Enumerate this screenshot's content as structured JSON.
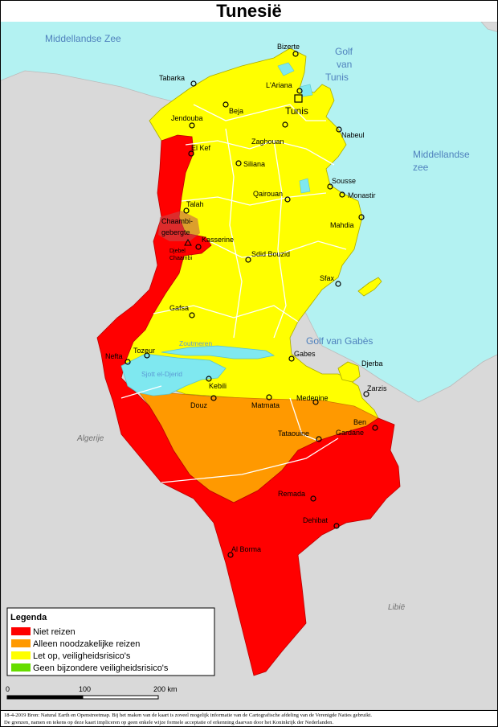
{
  "title": "Tunesië",
  "water_labels": {
    "mediterranean_nw": "Middellandse Zee",
    "gulf_tunis_line1": "Golf",
    "gulf_tunis_line2": "van",
    "gulf_tunis_line3": "Tunis",
    "mediterranean_e_line1": "Middellandse",
    "mediterranean_e_line2": "zee",
    "gulf_gabes": "Golf van Gabès",
    "zoutmeren": "Zoutmeren",
    "sjott": "Sjott el-Djerid"
  },
  "countries": {
    "algeria": "Algerije",
    "libya": "Libië"
  },
  "mountain_area": {
    "line1": "Chaambi-",
    "line2": "gebergte",
    "peak_line1": "Djebel",
    "peak_line2": "Chaambi"
  },
  "cities": [
    {
      "name": "Bizerte"
    },
    {
      "name": "Tabarka"
    },
    {
      "name": "L'Ariana"
    },
    {
      "name": "Beja"
    },
    {
      "name": "Tunis"
    },
    {
      "name": "Jendouba"
    },
    {
      "name": "Nabeul"
    },
    {
      "name": "Zaghouan"
    },
    {
      "name": "El Kef"
    },
    {
      "name": "Siliana"
    },
    {
      "name": "Sousse"
    },
    {
      "name": "Monastir"
    },
    {
      "name": "Qairouan"
    },
    {
      "name": "Talah"
    },
    {
      "name": "Mahdia"
    },
    {
      "name": "Kasserine"
    },
    {
      "name": "Sdid Bouzid"
    },
    {
      "name": "Sfax"
    },
    {
      "name": "Gafsa"
    },
    {
      "name": "Gabes"
    },
    {
      "name": "Nefta"
    },
    {
      "name": "Tozeur"
    },
    {
      "name": "Djerba"
    },
    {
      "name": "Kebili"
    },
    {
      "name": "Zarzis"
    },
    {
      "name": "Douz"
    },
    {
      "name": "Matmata"
    },
    {
      "name": "Medenine"
    },
    {
      "name": "Ben"
    },
    {
      "name": "Gardane"
    },
    {
      "name": "Tataouine"
    },
    {
      "name": "Remada"
    },
    {
      "name": "Dehibat"
    },
    {
      "name": "Al Borma"
    }
  ],
  "legend": {
    "title": "Legenda",
    "items": [
      {
        "label": "Niet reizen",
        "color": "#ff0000"
      },
      {
        "label": "Alleen noodzakelijke reizen",
        "color": "#ff9900"
      },
      {
        "label": "Let op, veiligheidsrisico's",
        "color": "#ffff00"
      },
      {
        "label": "Geen bijzondere veiligheidsrisico's",
        "color": "#66dd00"
      }
    ]
  },
  "scale": {
    "tick_0": "0",
    "tick_100": "100",
    "tick_200": "200 km"
  },
  "footer": {
    "line1": "18-4-2019 Bron: Natural Earth en Openstreetmap. Bij het maken van de kaart is zoveel mogelijk informatie van de Cartografische afdeling van de Verenigde Naties gebruikt.",
    "line2": "De grenzen, namen en tekens op deze kaart impliceren op geen enkele wijze formele acceptatie of erkenning daarvan door het Koninkrijk der Nederlanden."
  },
  "colors": {
    "sea": "#b3f2f2",
    "land_other": "#d9d9d9",
    "red": "#ff0000",
    "orange": "#ff9900",
    "yellow": "#ffff00",
    "lake": "#7fe8f0"
  }
}
